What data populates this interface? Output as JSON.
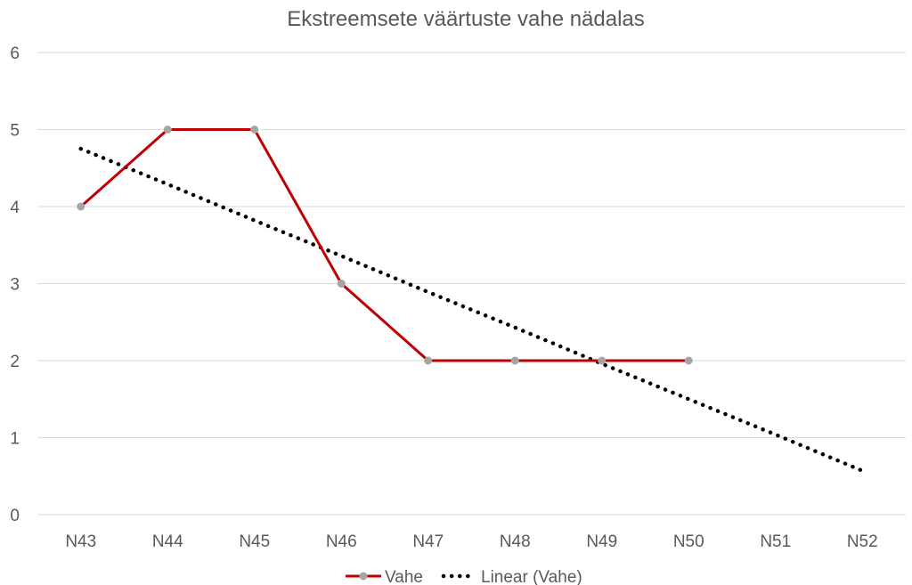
{
  "chart_data": {
    "type": "line",
    "title": "Ekstreemsete väärtuste vahe nädalas",
    "categories": [
      "N43",
      "N44",
      "N45",
      "N46",
      "N47",
      "N48",
      "N49",
      "N50",
      "N51",
      "N52"
    ],
    "series": [
      {
        "name": "Vahe",
        "values": [
          4,
          5,
          5,
          3,
          2,
          2,
          2,
          2,
          null,
          null
        ],
        "color": "#c00000",
        "marker_color": "#a5a5a5"
      },
      {
        "name": "Linear (Vahe)",
        "trendline": true,
        "values": [
          4.75,
          4.29,
          3.82,
          3.36,
          2.89,
          2.43,
          1.96,
          1.5,
          1.04,
          0.57
        ],
        "color": "#000000"
      }
    ],
    "ylim": [
      0,
      6
    ],
    "yticks": [
      0,
      1,
      2,
      3,
      4,
      5,
      6
    ],
    "grid": true,
    "legend": "bottom"
  }
}
